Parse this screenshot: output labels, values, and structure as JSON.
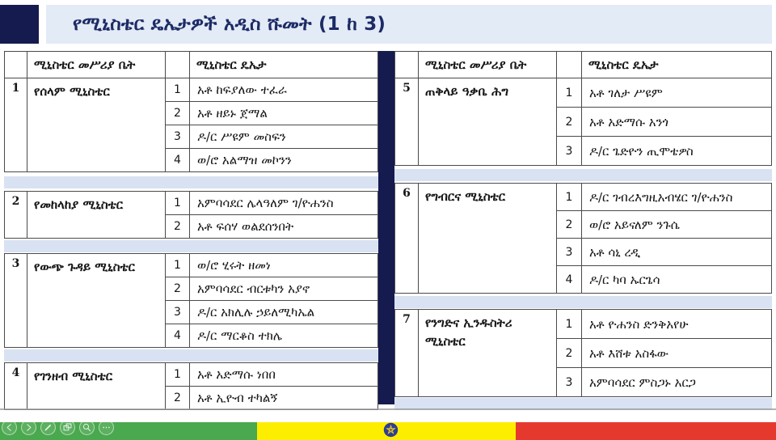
{
  "title": "የሚኒስቴር ዴኤታዎች አዲስ ሹመት (1 ከ 3)",
  "table_headers": {
    "ministry_office": "ሚኒስቴር መሥሪያ ቤት",
    "state_minister": "ሚኒስቴር ዴኤታ"
  },
  "columns": {
    "left": [
      {
        "num": "1",
        "ministry": "የሰላም ሚኒስቴር",
        "ministers": [
          "አቶ ከፍያለው ተፈራ",
          "አቶ ዘይኑ ጀማል",
          "ዶ/ር ሥዩም መስፍን",
          "ወ/ሮ አልማዝ መኮንን"
        ]
      },
      {
        "num": "2",
        "ministry": "የመከላከያ ሚኒስቴር",
        "ministers": [
          "አምባሳደር ሌላዓለም ገ/ዮሐንስ",
          "አቶ ፍሰሃ ወልደሰንበት"
        ]
      },
      {
        "num": "3",
        "ministry": "የውጭ ጉዳይ ሚኒስቴር",
        "ministers": [
          "ወ/ሮ ሂሩት ዘመነ",
          "አምባሳደር ብርቱካን አያኖ",
          "ዶ/ር አክሊሉ ኃይለሚካኤል",
          "ዶ/ር ማርቆስ ተክሌ"
        ]
      },
      {
        "num": "4",
        "ministry": "የገንዘብ ሚኒስቴር",
        "ministers": [
          "አቶ አድማሱ ነበበ",
          "አቶ ኢዮብ ተካልኝ"
        ]
      }
    ],
    "right": [
      {
        "num": "5",
        "ministry": "ጠቅላይ ዓቃቤ ሕግ",
        "ministers": [
          "አቶ ገለታ ሥዩም",
          "አቶ አድማሱ አንጎ",
          "ዶ/ር ጌድዮን ጢሞቴዎስ"
        ]
      },
      {
        "num": "6",
        "ministry": "የግብርና ሚኒስቴር",
        "ministers": [
          "ዶ/ር ገብረእግዚአብሄር ገ/ዮሐንስ",
          "ወ/ሮ አይናለም ንጉሴ",
          "አቶ ሳኒ ረዲ",
          "ዶ/ር ካባ ኡርጌሳ"
        ]
      },
      {
        "num": "7",
        "ministry": "የንግድና ኢንዱስትሪ ሚኒስቴር",
        "ministers": [
          "አቶ ዮሐንስ ድንቅአየሁ",
          "አቶ እሸቱ አስፋው",
          "አምባሳደር ምስጋኑ አርጋ"
        ]
      }
    ]
  },
  "toolbar": {
    "buttons": [
      {
        "name": "prev",
        "icon": "chevron-left-icon"
      },
      {
        "name": "next",
        "icon": "chevron-right-icon"
      },
      {
        "name": "annotate",
        "icon": "pen-icon"
      },
      {
        "name": "snapshot",
        "icon": "snapshot-icon"
      },
      {
        "name": "zoom",
        "icon": "magnifier-icon"
      },
      {
        "name": "more",
        "icon": "ellipsis-icon"
      }
    ]
  },
  "colors": {
    "navy": "#151b4f",
    "title_band_bg": "#e3ebf6",
    "title_text": "#1d2b66",
    "divider_band": "#d8e2f2",
    "table_border": "#4a4a4a",
    "flag_green": "#4aa84e",
    "flag_yellow": "#fdee00",
    "flag_red": "#e6392e",
    "emblem_blue": "#2e3d96",
    "emblem_star": "#f2cf1c"
  }
}
